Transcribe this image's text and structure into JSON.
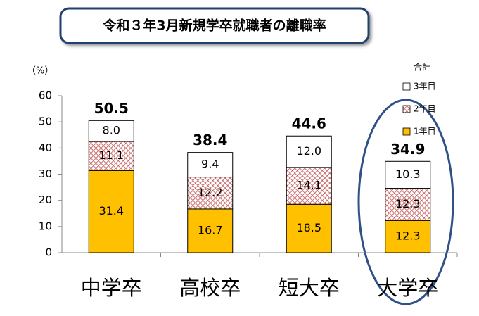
{
  "chart_data": {
    "type": "stacked-bar",
    "title": "令和３年3月新規学卒就職者の離職率",
    "y_unit_label": "（%）",
    "categories": [
      "中学卒",
      "高校卒",
      "短大卒",
      "大学卒"
    ],
    "series": [
      {
        "name": "1年目",
        "color": "#ffc000",
        "values": [
          31.4,
          16.7,
          18.5,
          12.3
        ]
      },
      {
        "name": "2年目",
        "color": "#c0504d",
        "pattern": "hatch",
        "values": [
          11.1,
          12.2,
          14.1,
          12.3
        ]
      },
      {
        "name": "3年目",
        "color": "#ffffff",
        "values": [
          8.0,
          9.4,
          12.0,
          10.3
        ],
        "value_labels": [
          "8.0",
          "9.4",
          "12.0",
          "10.3"
        ]
      }
    ],
    "totals": {
      "name": "合計",
      "values": [
        50.5,
        38.4,
        44.6,
        34.9
      ]
    },
    "ylim": [
      0,
      60
    ],
    "yticks": [
      0,
      10,
      20,
      30,
      40,
      50,
      60
    ]
  }
}
